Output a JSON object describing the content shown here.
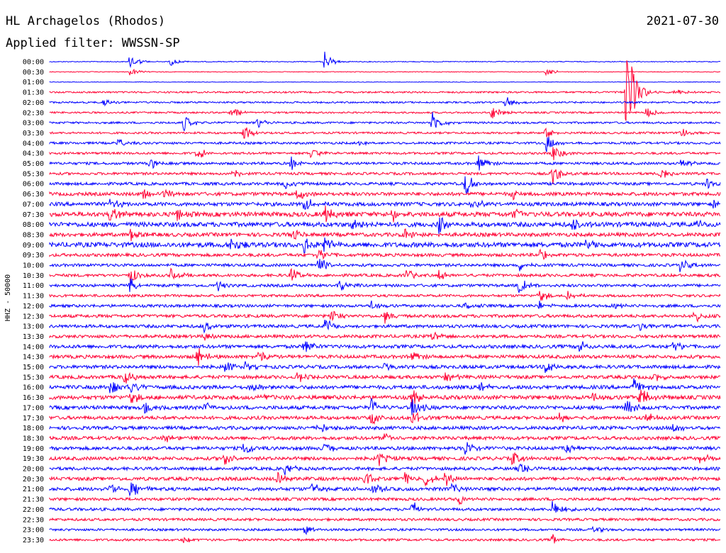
{
  "header": {
    "station": "HL Archagelos (Rhodos)",
    "date": "2021-07-30",
    "filter": "Applied filter: WWSSN-SP"
  },
  "chart_data": {
    "type": "line",
    "title": "HL Archagelos (Rhodos)",
    "ylabel": "HHZ - 50000",
    "colors": {
      "even": "#0000ff",
      "odd": "#ff0033",
      "text": "#000000"
    },
    "row_labels": [
      "00:00",
      "00:30",
      "01:00",
      "01:30",
      "02:00",
      "02:30",
      "03:00",
      "03:30",
      "04:00",
      "04:30",
      "05:00",
      "05:30",
      "06:00",
      "06:30",
      "07:00",
      "07:30",
      "08:00",
      "08:30",
      "09:00",
      "09:30",
      "10:00",
      "10:30",
      "11:00",
      "11:30",
      "12:00",
      "12:30",
      "13:00",
      "13:30",
      "14:00",
      "14:30",
      "15:00",
      "15:30",
      "16:00",
      "16:30",
      "17:00",
      "17:30",
      "18:00",
      "18:30",
      "19:00",
      "19:30",
      "20:00",
      "20:30",
      "21:00",
      "21:30",
      "22:00",
      "22:30",
      "23:00",
      "23:30"
    ],
    "noise_level": [
      0.6,
      0.5,
      0.4,
      1.2,
      1.2,
      1.2,
      1.4,
      1.4,
      1.6,
      1.6,
      1.8,
      1.8,
      2.0,
      2.4,
      2.6,
      3.2,
      3.2,
      2.6,
      3.4,
      2.2,
      2.0,
      2.0,
      2.0,
      1.8,
      2.0,
      2.2,
      2.2,
      2.2,
      2.4,
      2.4,
      2.4,
      2.4,
      2.6,
      2.8,
      2.6,
      2.4,
      2.4,
      2.4,
      2.4,
      2.4,
      2.2,
      2.4,
      2.4,
      2.0,
      2.0,
      1.8,
      1.6,
      1.6
    ],
    "events": [
      {
        "row": 0,
        "x": 0.12,
        "amp": 12
      },
      {
        "row": 0,
        "x": 0.18,
        "amp": 6
      },
      {
        "row": 0,
        "x": 0.41,
        "amp": 14
      },
      {
        "row": 1,
        "x": 0.12,
        "amp": 6
      },
      {
        "row": 1,
        "x": 0.74,
        "amp": 6
      },
      {
        "row": 3,
        "x": 0.86,
        "amp": 80
      },
      {
        "row": 3,
        "x": 0.93,
        "amp": 6
      },
      {
        "row": 4,
        "x": 0.68,
        "amp": 10
      },
      {
        "row": 4,
        "x": 0.08,
        "amp": 6
      },
      {
        "row": 5,
        "x": 0.27,
        "amp": 12
      },
      {
        "row": 5,
        "x": 0.66,
        "amp": 12
      },
      {
        "row": 5,
        "x": 0.89,
        "amp": 8
      },
      {
        "row": 6,
        "x": 0.2,
        "amp": 12
      },
      {
        "row": 6,
        "x": 0.31,
        "amp": 8
      },
      {
        "row": 6,
        "x": 0.57,
        "amp": 16
      },
      {
        "row": 7,
        "x": 0.29,
        "amp": 12
      },
      {
        "row": 7,
        "x": 0.74,
        "amp": 10
      },
      {
        "row": 7,
        "x": 0.94,
        "amp": 8
      },
      {
        "row": 8,
        "x": 0.1,
        "amp": 8
      },
      {
        "row": 8,
        "x": 0.46,
        "amp": 8
      },
      {
        "row": 8,
        "x": 0.74,
        "amp": 14
      },
      {
        "row": 9,
        "x": 0.22,
        "amp": 10
      },
      {
        "row": 9,
        "x": 0.39,
        "amp": 8
      },
      {
        "row": 9,
        "x": 0.75,
        "amp": 12
      },
      {
        "row": 10,
        "x": 0.15,
        "amp": 8
      },
      {
        "row": 10,
        "x": 0.36,
        "amp": 10
      },
      {
        "row": 10,
        "x": 0.64,
        "amp": 14
      },
      {
        "row": 10,
        "x": 0.94,
        "amp": 8
      },
      {
        "row": 11,
        "x": 0.27,
        "amp": 10
      },
      {
        "row": 11,
        "x": 0.75,
        "amp": 16
      },
      {
        "row": 11,
        "x": 0.91,
        "amp": 14
      },
      {
        "row": 12,
        "x": 0.62,
        "amp": 18
      },
      {
        "row": 12,
        "x": 0.35,
        "amp": 10
      },
      {
        "row": 12,
        "x": 0.98,
        "amp": 8
      },
      {
        "row": 13,
        "x": 0.14,
        "amp": 10
      },
      {
        "row": 13,
        "x": 0.17,
        "amp": 8
      },
      {
        "row": 13,
        "x": 0.37,
        "amp": 10
      },
      {
        "row": 13,
        "x": 0.69,
        "amp": 8
      },
      {
        "row": 14,
        "x": 0.09,
        "amp": 10
      },
      {
        "row": 14,
        "x": 0.38,
        "amp": 12
      },
      {
        "row": 14,
        "x": 0.63,
        "amp": 10
      },
      {
        "row": 14,
        "x": 0.99,
        "amp": 8
      },
      {
        "row": 15,
        "x": 0.09,
        "amp": 12
      },
      {
        "row": 15,
        "x": 0.19,
        "amp": 10
      },
      {
        "row": 15,
        "x": 0.41,
        "amp": 14
      },
      {
        "row": 15,
        "x": 0.51,
        "amp": 12
      },
      {
        "row": 15,
        "x": 0.69,
        "amp": 10
      },
      {
        "row": 16,
        "x": 0.45,
        "amp": 10
      },
      {
        "row": 16,
        "x": 0.58,
        "amp": 12
      },
      {
        "row": 16,
        "x": 0.78,
        "amp": 10
      },
      {
        "row": 16,
        "x": 0.96,
        "amp": 8
      },
      {
        "row": 17,
        "x": 0.12,
        "amp": 10
      },
      {
        "row": 17,
        "x": 0.36,
        "amp": 10
      },
      {
        "row": 17,
        "x": 0.53,
        "amp": 10
      },
      {
        "row": 18,
        "x": 0.27,
        "amp": 12
      },
      {
        "row": 18,
        "x": 0.38,
        "amp": 12
      },
      {
        "row": 18,
        "x": 0.41,
        "amp": 14
      },
      {
        "row": 18,
        "x": 0.8,
        "amp": 8
      },
      {
        "row": 19,
        "x": 0.4,
        "amp": 12
      },
      {
        "row": 19,
        "x": 0.73,
        "amp": 10
      },
      {
        "row": 20,
        "x": 0.4,
        "amp": 14
      },
      {
        "row": 20,
        "x": 0.7,
        "amp": 8
      },
      {
        "row": 20,
        "x": 0.94,
        "amp": 10
      },
      {
        "row": 21,
        "x": 0.12,
        "amp": 12
      },
      {
        "row": 21,
        "x": 0.18,
        "amp": 10
      },
      {
        "row": 21,
        "x": 0.36,
        "amp": 10
      },
      {
        "row": 21,
        "x": 0.53,
        "amp": 10
      },
      {
        "row": 21,
        "x": 0.58,
        "amp": 8
      },
      {
        "row": 22,
        "x": 0.12,
        "amp": 12
      },
      {
        "row": 22,
        "x": 0.25,
        "amp": 8
      },
      {
        "row": 22,
        "x": 0.43,
        "amp": 12
      },
      {
        "row": 22,
        "x": 0.7,
        "amp": 12
      },
      {
        "row": 23,
        "x": 0.73,
        "amp": 10
      },
      {
        "row": 23,
        "x": 0.77,
        "amp": 8
      },
      {
        "row": 24,
        "x": 0.48,
        "amp": 8
      },
      {
        "row": 24,
        "x": 0.62,
        "amp": 8
      },
      {
        "row": 24,
        "x": 0.73,
        "amp": 6
      },
      {
        "row": 24,
        "x": 0.84,
        "amp": 8
      },
      {
        "row": 25,
        "x": 0.42,
        "amp": 10
      },
      {
        "row": 25,
        "x": 0.5,
        "amp": 10
      },
      {
        "row": 25,
        "x": 0.96,
        "amp": 10
      },
      {
        "row": 26,
        "x": 0.23,
        "amp": 8
      },
      {
        "row": 26,
        "x": 0.41,
        "amp": 12
      },
      {
        "row": 26,
        "x": 0.88,
        "amp": 8
      },
      {
        "row": 27,
        "x": 0.23,
        "amp": 6
      },
      {
        "row": 27,
        "x": 0.57,
        "amp": 8
      },
      {
        "row": 28,
        "x": 0.38,
        "amp": 14
      },
      {
        "row": 28,
        "x": 0.79,
        "amp": 10
      },
      {
        "row": 28,
        "x": 0.93,
        "amp": 12
      },
      {
        "row": 29,
        "x": 0.22,
        "amp": 14
      },
      {
        "row": 29,
        "x": 0.31,
        "amp": 12
      },
      {
        "row": 29,
        "x": 0.54,
        "amp": 10
      },
      {
        "row": 30,
        "x": 0.26,
        "amp": 10
      },
      {
        "row": 30,
        "x": 0.29,
        "amp": 10
      },
      {
        "row": 30,
        "x": 0.5,
        "amp": 8
      },
      {
        "row": 30,
        "x": 0.74,
        "amp": 12
      },
      {
        "row": 31,
        "x": 0.11,
        "amp": 12
      },
      {
        "row": 31,
        "x": 0.37,
        "amp": 10
      },
      {
        "row": 31,
        "x": 0.59,
        "amp": 8
      },
      {
        "row": 31,
        "x": 0.9,
        "amp": 10
      },
      {
        "row": 32,
        "x": 0.09,
        "amp": 12
      },
      {
        "row": 32,
        "x": 0.12,
        "amp": 10
      },
      {
        "row": 32,
        "x": 0.3,
        "amp": 8
      },
      {
        "row": 32,
        "x": 0.64,
        "amp": 10
      },
      {
        "row": 32,
        "x": 0.87,
        "amp": 14
      },
      {
        "row": 33,
        "x": 0.12,
        "amp": 10
      },
      {
        "row": 33,
        "x": 0.31,
        "amp": 8
      },
      {
        "row": 33,
        "x": 0.54,
        "amp": 14
      },
      {
        "row": 33,
        "x": 0.81,
        "amp": 8
      },
      {
        "row": 33,
        "x": 0.88,
        "amp": 18
      },
      {
        "row": 34,
        "x": 0.14,
        "amp": 10
      },
      {
        "row": 34,
        "x": 0.23,
        "amp": 10
      },
      {
        "row": 34,
        "x": 0.48,
        "amp": 12
      },
      {
        "row": 34,
        "x": 0.54,
        "amp": 14
      },
      {
        "row": 34,
        "x": 0.86,
        "amp": 14
      },
      {
        "row": 35,
        "x": 0.48,
        "amp": 10
      },
      {
        "row": 35,
        "x": 0.54,
        "amp": 12
      },
      {
        "row": 35,
        "x": 0.76,
        "amp": 8
      },
      {
        "row": 35,
        "x": 0.89,
        "amp": 8
      },
      {
        "row": 36,
        "x": 0.4,
        "amp": 10
      },
      {
        "row": 36,
        "x": 0.93,
        "amp": 8
      },
      {
        "row": 37,
        "x": 0.17,
        "amp": 8
      },
      {
        "row": 37,
        "x": 0.5,
        "amp": 8
      },
      {
        "row": 38,
        "x": 0.29,
        "amp": 12
      },
      {
        "row": 38,
        "x": 0.41,
        "amp": 10
      },
      {
        "row": 38,
        "x": 0.62,
        "amp": 12
      },
      {
        "row": 38,
        "x": 0.77,
        "amp": 8
      },
      {
        "row": 39,
        "x": 0.26,
        "amp": 10
      },
      {
        "row": 39,
        "x": 0.49,
        "amp": 12
      },
      {
        "row": 39,
        "x": 0.69,
        "amp": 10
      },
      {
        "row": 39,
        "x": 0.97,
        "amp": 8
      },
      {
        "row": 40,
        "x": 0.35,
        "amp": 10
      },
      {
        "row": 40,
        "x": 0.7,
        "amp": 10
      },
      {
        "row": 41,
        "x": 0.34,
        "amp": 12
      },
      {
        "row": 41,
        "x": 0.47,
        "amp": 12
      },
      {
        "row": 41,
        "x": 0.53,
        "amp": 10
      },
      {
        "row": 41,
        "x": 0.56,
        "amp": 12
      },
      {
        "row": 41,
        "x": 0.59,
        "amp": 12
      },
      {
        "row": 42,
        "x": 0.09,
        "amp": 8
      },
      {
        "row": 42,
        "x": 0.12,
        "amp": 14
      },
      {
        "row": 42,
        "x": 0.39,
        "amp": 10
      },
      {
        "row": 42,
        "x": 0.48,
        "amp": 12
      },
      {
        "row": 42,
        "x": 0.6,
        "amp": 8
      },
      {
        "row": 43,
        "x": 0.61,
        "amp": 10
      },
      {
        "row": 44,
        "x": 0.54,
        "amp": 12
      },
      {
        "row": 44,
        "x": 0.75,
        "amp": 14
      },
      {
        "row": 46,
        "x": 0.38,
        "amp": 8
      },
      {
        "row": 46,
        "x": 0.81,
        "amp": 6
      },
      {
        "row": 47,
        "x": 0.2,
        "amp": 6
      },
      {
        "row": 47,
        "x": 0.75,
        "amp": 8
      }
    ]
  }
}
